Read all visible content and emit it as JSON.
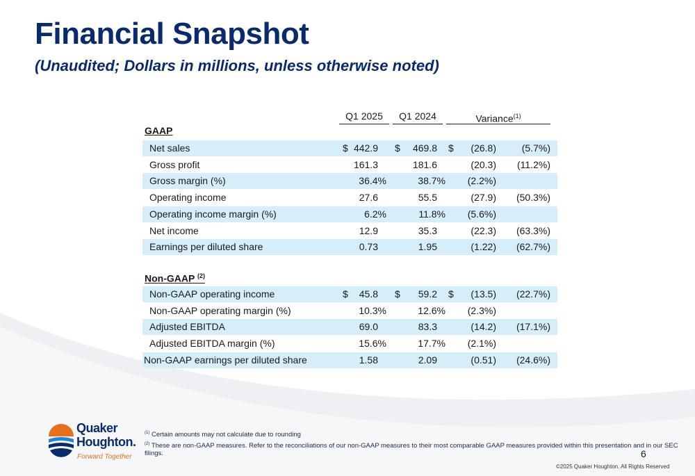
{
  "title": "Financial Snapshot",
  "subtitle": "(Unaudited; Dollars in millions, unless otherwise noted)",
  "columns": {
    "q1_2025": "Q1 2025",
    "q1_2024": "Q1 2024",
    "variance": "Variance",
    "variance_note": "(1)"
  },
  "gaap": {
    "heading": "GAAP",
    "rows": [
      {
        "label": "Net sales",
        "cur_sign": "$",
        "cur": "442.9",
        "prev_sign": "$",
        "prev": "469.8",
        "var_sign": "$",
        "var": "(26.8)",
        "pct": "(5.7%)"
      },
      {
        "label": "Gross profit",
        "cur": "161.3",
        "prev": "181.6",
        "var": "(20.3)",
        "pct": "(11.2%)"
      },
      {
        "label": "Gross margin (%)",
        "cur": "36.4%",
        "prev": "38.7%",
        "var": "(2.2%)",
        "pct": ""
      },
      {
        "label": "Operating income",
        "cur": "27.6",
        "prev": "55.5",
        "var": "(27.9)",
        "pct": "(50.3%)"
      },
      {
        "label": "Operating income margin (%)",
        "cur": "6.2%",
        "prev": "11.8%",
        "var": "(5.6%)",
        "pct": ""
      },
      {
        "label": "Net income",
        "cur": "12.9",
        "prev": "35.3",
        "var": "(22.3)",
        "pct": "(63.3%)"
      },
      {
        "label": "Earnings per diluted share",
        "cur": "0.73",
        "prev": "1.95",
        "var": "(1.22)",
        "pct": "(62.7%)"
      }
    ]
  },
  "non_gaap": {
    "heading": "Non-GAAP",
    "heading_note": "(2)",
    "rows": [
      {
        "label": "Non-GAAP operating income",
        "cur_sign": "$",
        "cur": "45.8",
        "prev_sign": "$",
        "prev": "59.2",
        "var_sign": "$",
        "var": "(13.5)",
        "pct": "(22.7%)"
      },
      {
        "label": "Non-GAAP operating margin (%)",
        "cur": "10.3%",
        "prev": "12.6%",
        "var": "(2.3%)",
        "pct": ""
      },
      {
        "label": "Adjusted EBITDA",
        "cur": "69.0",
        "prev": "83.3",
        "var": "(14.2)",
        "pct": "(17.1%)"
      },
      {
        "label": "Adjusted EBITDA margin (%)",
        "cur": "15.6%",
        "prev": "17.7%",
        "var": "(2.1%)",
        "pct": ""
      },
      {
        "label": "Non-GAAP earnings per diluted share",
        "cur": "1.58",
        "prev": "2.09",
        "var": "(0.51)",
        "pct": "(24.6%)"
      }
    ]
  },
  "footnotes": [
    {
      "mark": "(1)",
      "text": "Certain amounts may not calculate due to rounding"
    },
    {
      "mark": "(2)",
      "text": "These are non-GAAP measures. Refer to the reconciliations of our non-GAAP measures to their most comparable GAAP measures provided within this presentation and in our SEC filings."
    }
  ],
  "page_number": "6",
  "copyright": "©2025 Quaker Houghton. All Rights Reserved",
  "logo": {
    "line1": "Quaker",
    "line2": "Houghton.",
    "tagline": "Forward Together",
    "colors": {
      "navy": "#0a2a6e",
      "orange": "#e8701a",
      "blue": "#1e88d8"
    }
  },
  "colors": {
    "title": "#0a2a6e",
    "row_shade": "#d6edfa"
  }
}
